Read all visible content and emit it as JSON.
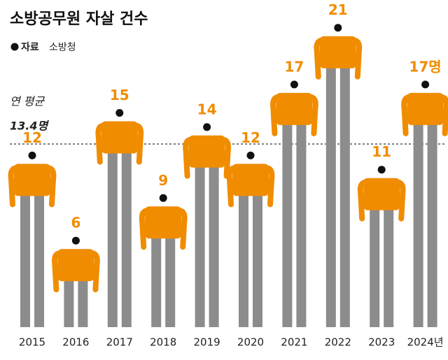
{
  "chart_data": {
    "type": "bar",
    "title": "소방공무원 자살 건수",
    "source_label": "자료",
    "source": "소방청",
    "categories": [
      "2015",
      "2016",
      "2017",
      "2018",
      "2019",
      "2020",
      "2021",
      "2022",
      "2023",
      "2024년"
    ],
    "values": [
      12,
      6,
      15,
      9,
      14,
      12,
      17,
      21,
      11,
      17
    ],
    "value_labels": [
      "12",
      "6",
      "15",
      "9",
      "14",
      "12",
      "17",
      "21",
      "11",
      "17명"
    ],
    "color": "#f08c00",
    "leg_color": "#8c8c8c",
    "average": {
      "label": "연 평균",
      "value": 13.4,
      "value_label": "13.4명"
    }
  }
}
